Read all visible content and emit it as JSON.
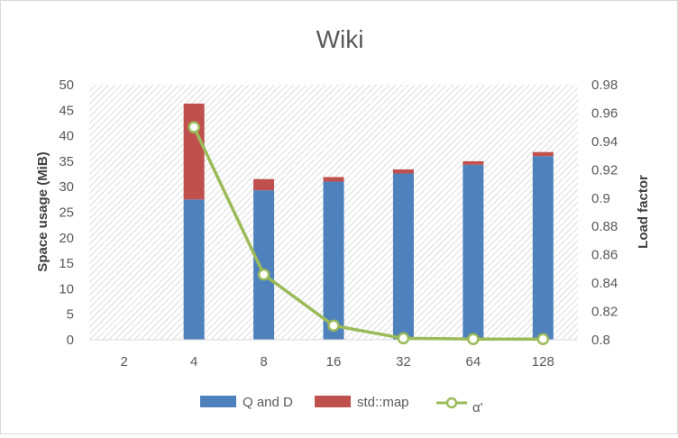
{
  "chart_data": {
    "type": "bar",
    "title": "Wiki",
    "xlabel": "",
    "ylabel": "Space usage (MiB)",
    "y2label": "Load factor",
    "categories": [
      "2",
      "4",
      "8",
      "16",
      "32",
      "64",
      "128"
    ],
    "ylim": [
      0,
      50
    ],
    "yticks": [
      "0",
      "5",
      "10",
      "15",
      "20",
      "25",
      "30",
      "35",
      "40",
      "45",
      "50"
    ],
    "y2lim": [
      0.8,
      0.98
    ],
    "y2ticks": [
      "0.8",
      "0.82",
      "0.84",
      "0.86",
      "0.88",
      "0.9",
      "0.92",
      "0.94",
      "0.96",
      "0.98"
    ],
    "stacked": true,
    "grid": false,
    "legend_position": "bottom",
    "series": [
      {
        "name": "Q and D",
        "type": "bar",
        "axis": "left",
        "color": "#4f81bd",
        "values": [
          0,
          27.5,
          29.3,
          31.0,
          32.6,
          34.3,
          36.0
        ]
      },
      {
        "name": "std::map",
        "type": "bar",
        "axis": "left",
        "color": "#c0504d",
        "values": [
          0,
          18.8,
          2.2,
          0.9,
          0.8,
          0.7,
          0.8
        ]
      },
      {
        "name": "α'",
        "type": "line",
        "axis": "right",
        "color": "#9bbb59",
        "values": [
          null,
          0.95,
          0.846,
          0.81,
          0.801,
          0.8005,
          0.8005
        ]
      }
    ]
  }
}
